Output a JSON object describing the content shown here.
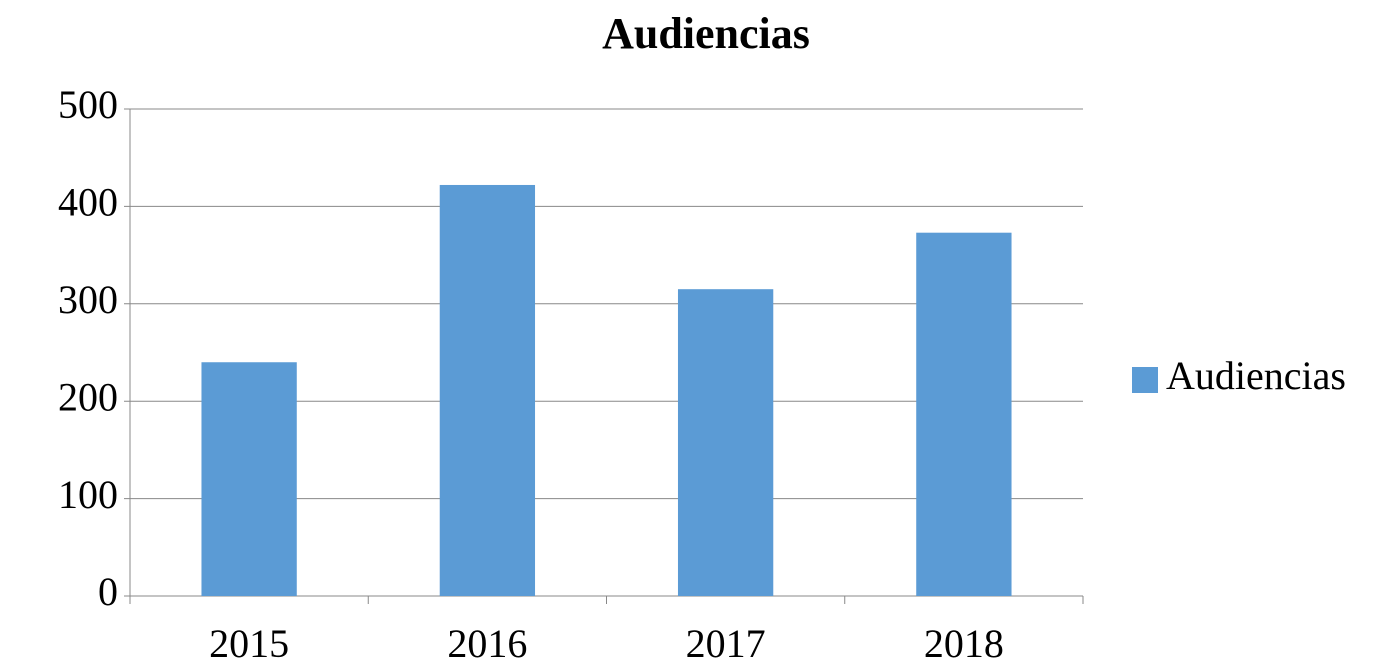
{
  "chart_data": {
    "type": "bar",
    "title": "Audiencias",
    "categories": [
      "2015",
      "2016",
      "2017",
      "2018"
    ],
    "series": [
      {
        "name": "Audiencias",
        "color": "#5b9bd5",
        "values": [
          240,
          422,
          315,
          373
        ]
      }
    ],
    "ylim": [
      0,
      500
    ],
    "yticks": [
      0,
      100,
      200,
      300,
      400,
      500
    ],
    "grid": true,
    "legend": "right"
  }
}
